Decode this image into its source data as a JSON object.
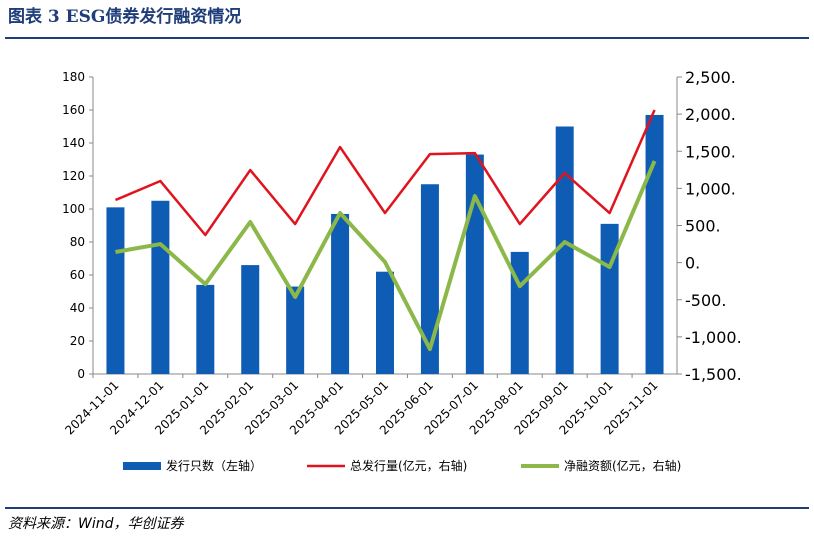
{
  "chart_data": {
    "type": "combo",
    "title": "图表 3 ESG债券发行融资情况",
    "source": "资料来源：Wind，华创证券",
    "categories": [
      "2024-11-01",
      "2024-12-01",
      "2025-01-01",
      "2025-02-01",
      "2025-03-01",
      "2025-04-01",
      "2025-05-01",
      "2025-06-01",
      "2025-07-01",
      "2025-08-01",
      "2025-09-01",
      "2025-10-01",
      "2025-11-01"
    ],
    "series": [
      {
        "name": "发行只数（左轴）",
        "type": "bar",
        "color": "#0f5cb5",
        "values": [
          101,
          105,
          54,
          66,
          53,
          97,
          62,
          115,
          133,
          74,
          150,
          91,
          157
        ]
      },
      {
        "name": "总发行量(亿元，右轴)",
        "type": "line",
        "axis": "y2",
        "color": "#e0141e",
        "values": [
          843,
          1099,
          372,
          1247,
          520,
          1557,
          668,
          1461,
          1475,
          520,
          1207,
          668,
          2055
        ]
      },
      {
        "name": "净融资额(亿元，右轴)",
        "type": "line",
        "axis": "y2",
        "color": "#8cb84a",
        "values": [
          143,
          250,
          -290,
          547,
          -463,
          668,
          8,
          -1164,
          897,
          -317,
          277,
          -59,
          1369
        ]
      }
    ],
    "ylim": [
      0,
      180
    ],
    "yticks": [
      0,
      20,
      40,
      60,
      80,
      100,
      120,
      140,
      160,
      180
    ],
    "y2lim": [
      -1500,
      2500
    ],
    "y2ticks": [
      {
        "value": -1500,
        "label": "-1,500."
      },
      {
        "value": -1000,
        "label": "-1,000."
      },
      {
        "value": -500,
        "label": "-500."
      },
      {
        "value": 0,
        "label": "0."
      },
      {
        "value": 500,
        "label": "500."
      },
      {
        "value": 1000,
        "label": "1,000."
      },
      {
        "value": 1500,
        "label": "1,500."
      },
      {
        "value": 2000,
        "label": "2,000."
      },
      {
        "value": 2500,
        "label": "2,500."
      }
    ]
  }
}
